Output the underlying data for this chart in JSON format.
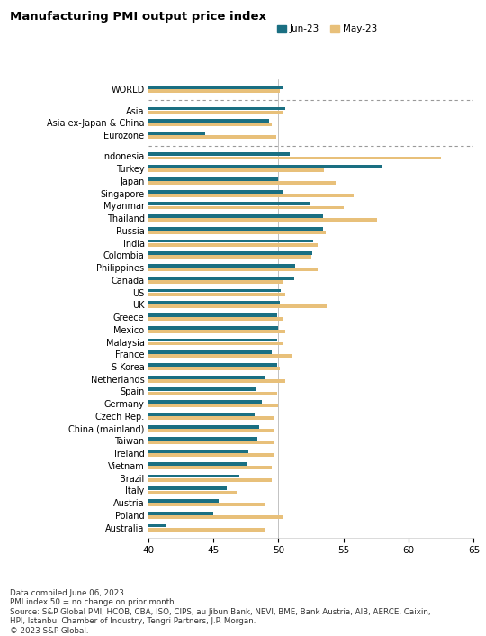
{
  "title": "Manufacturing PMI output price index",
  "legend_jun": "Jun-23",
  "legend_may": "May-23",
  "color_jun": "#1a6f82",
  "color_may": "#e8c07a",
  "xlim": [
    40,
    65
  ],
  "xticks": [
    40,
    45,
    50,
    55,
    60,
    65
  ],
  "footnotes": "Data compiled June 06, 2023.\nPMI index 50 = no change on prior month.\nSource: S&P Global PMI, HCOB, CBA, ISO, CIPS, au Jibun Bank, NEVI, BME, Bank Austria, AIB, AERCE, Caixin,\nHPI, Istanbul Chamber of Industry, Tengri Partners, J.P. Morgan.\n© 2023 S&P Global.",
  "rows": [
    {
      "cat": "WORLD",
      "jun": 50.3,
      "may": 50.1,
      "sep_after": true
    },
    {
      "cat": "Asia",
      "jun": 50.5,
      "may": 50.3,
      "sep_after": false
    },
    {
      "cat": "Asia ex-Japan & China",
      "jun": 49.3,
      "may": 49.5,
      "sep_after": false
    },
    {
      "cat": "Eurozone",
      "jun": 44.4,
      "may": 49.8,
      "sep_after": true
    },
    {
      "cat": "Indonesia",
      "jun": 50.9,
      "may": 62.5,
      "sep_after": false
    },
    {
      "cat": "Turkey",
      "jun": 57.9,
      "may": 53.5,
      "sep_after": false
    },
    {
      "cat": "Japan",
      "jun": 50.0,
      "may": 54.4,
      "sep_after": false
    },
    {
      "cat": "Singapore",
      "jun": 50.4,
      "may": 55.8,
      "sep_after": false
    },
    {
      "cat": "Myanmar",
      "jun": 52.4,
      "may": 55.0,
      "sep_after": false
    },
    {
      "cat": "Thailand",
      "jun": 53.4,
      "may": 57.6,
      "sep_after": false
    },
    {
      "cat": "Russia",
      "jun": 53.4,
      "may": 53.6,
      "sep_after": false
    },
    {
      "cat": "India",
      "jun": 52.7,
      "may": 53.0,
      "sep_after": false
    },
    {
      "cat": "Colombia",
      "jun": 52.6,
      "may": 52.5,
      "sep_after": false
    },
    {
      "cat": "Philippines",
      "jun": 51.3,
      "may": 53.0,
      "sep_after": false
    },
    {
      "cat": "Canada",
      "jun": 51.2,
      "may": 50.4,
      "sep_after": false
    },
    {
      "cat": "US",
      "jun": 50.2,
      "may": 50.5,
      "sep_after": false
    },
    {
      "cat": "UK",
      "jun": 50.1,
      "may": 53.7,
      "sep_after": false
    },
    {
      "cat": "Greece",
      "jun": 49.9,
      "may": 50.3,
      "sep_after": false
    },
    {
      "cat": "Mexico",
      "jun": 50.0,
      "may": 50.5,
      "sep_after": false
    },
    {
      "cat": "Malaysia",
      "jun": 49.9,
      "may": 50.3,
      "sep_after": false
    },
    {
      "cat": "France",
      "jun": 49.5,
      "may": 51.0,
      "sep_after": false
    },
    {
      "cat": "S Korea",
      "jun": 49.9,
      "may": 50.1,
      "sep_after": false
    },
    {
      "cat": "Netherlands",
      "jun": 49.0,
      "may": 50.5,
      "sep_after": false
    },
    {
      "cat": "Spain",
      "jun": 48.3,
      "may": 49.9,
      "sep_after": false
    },
    {
      "cat": "Germany",
      "jun": 48.7,
      "may": 50.0,
      "sep_after": false
    },
    {
      "cat": "Czech Rep.",
      "jun": 48.2,
      "may": 49.7,
      "sep_after": false
    },
    {
      "cat": "China (mainland)",
      "jun": 48.5,
      "may": 49.6,
      "sep_after": false
    },
    {
      "cat": "Taiwan",
      "jun": 48.4,
      "may": 49.6,
      "sep_after": false
    },
    {
      "cat": "Ireland",
      "jun": 47.7,
      "may": 49.6,
      "sep_after": false
    },
    {
      "cat": "Vietnam",
      "jun": 47.6,
      "may": 49.5,
      "sep_after": false
    },
    {
      "cat": "Brazil",
      "jun": 47.0,
      "may": 49.5,
      "sep_after": false
    },
    {
      "cat": "Italy",
      "jun": 46.0,
      "may": 46.8,
      "sep_after": false
    },
    {
      "cat": "Austria",
      "jun": 45.4,
      "may": 48.9,
      "sep_after": false
    },
    {
      "cat": "Poland",
      "jun": 45.0,
      "may": 50.3,
      "sep_after": false
    },
    {
      "cat": "Australia",
      "jun": 41.3,
      "may": 48.9,
      "sep_after": false
    }
  ]
}
